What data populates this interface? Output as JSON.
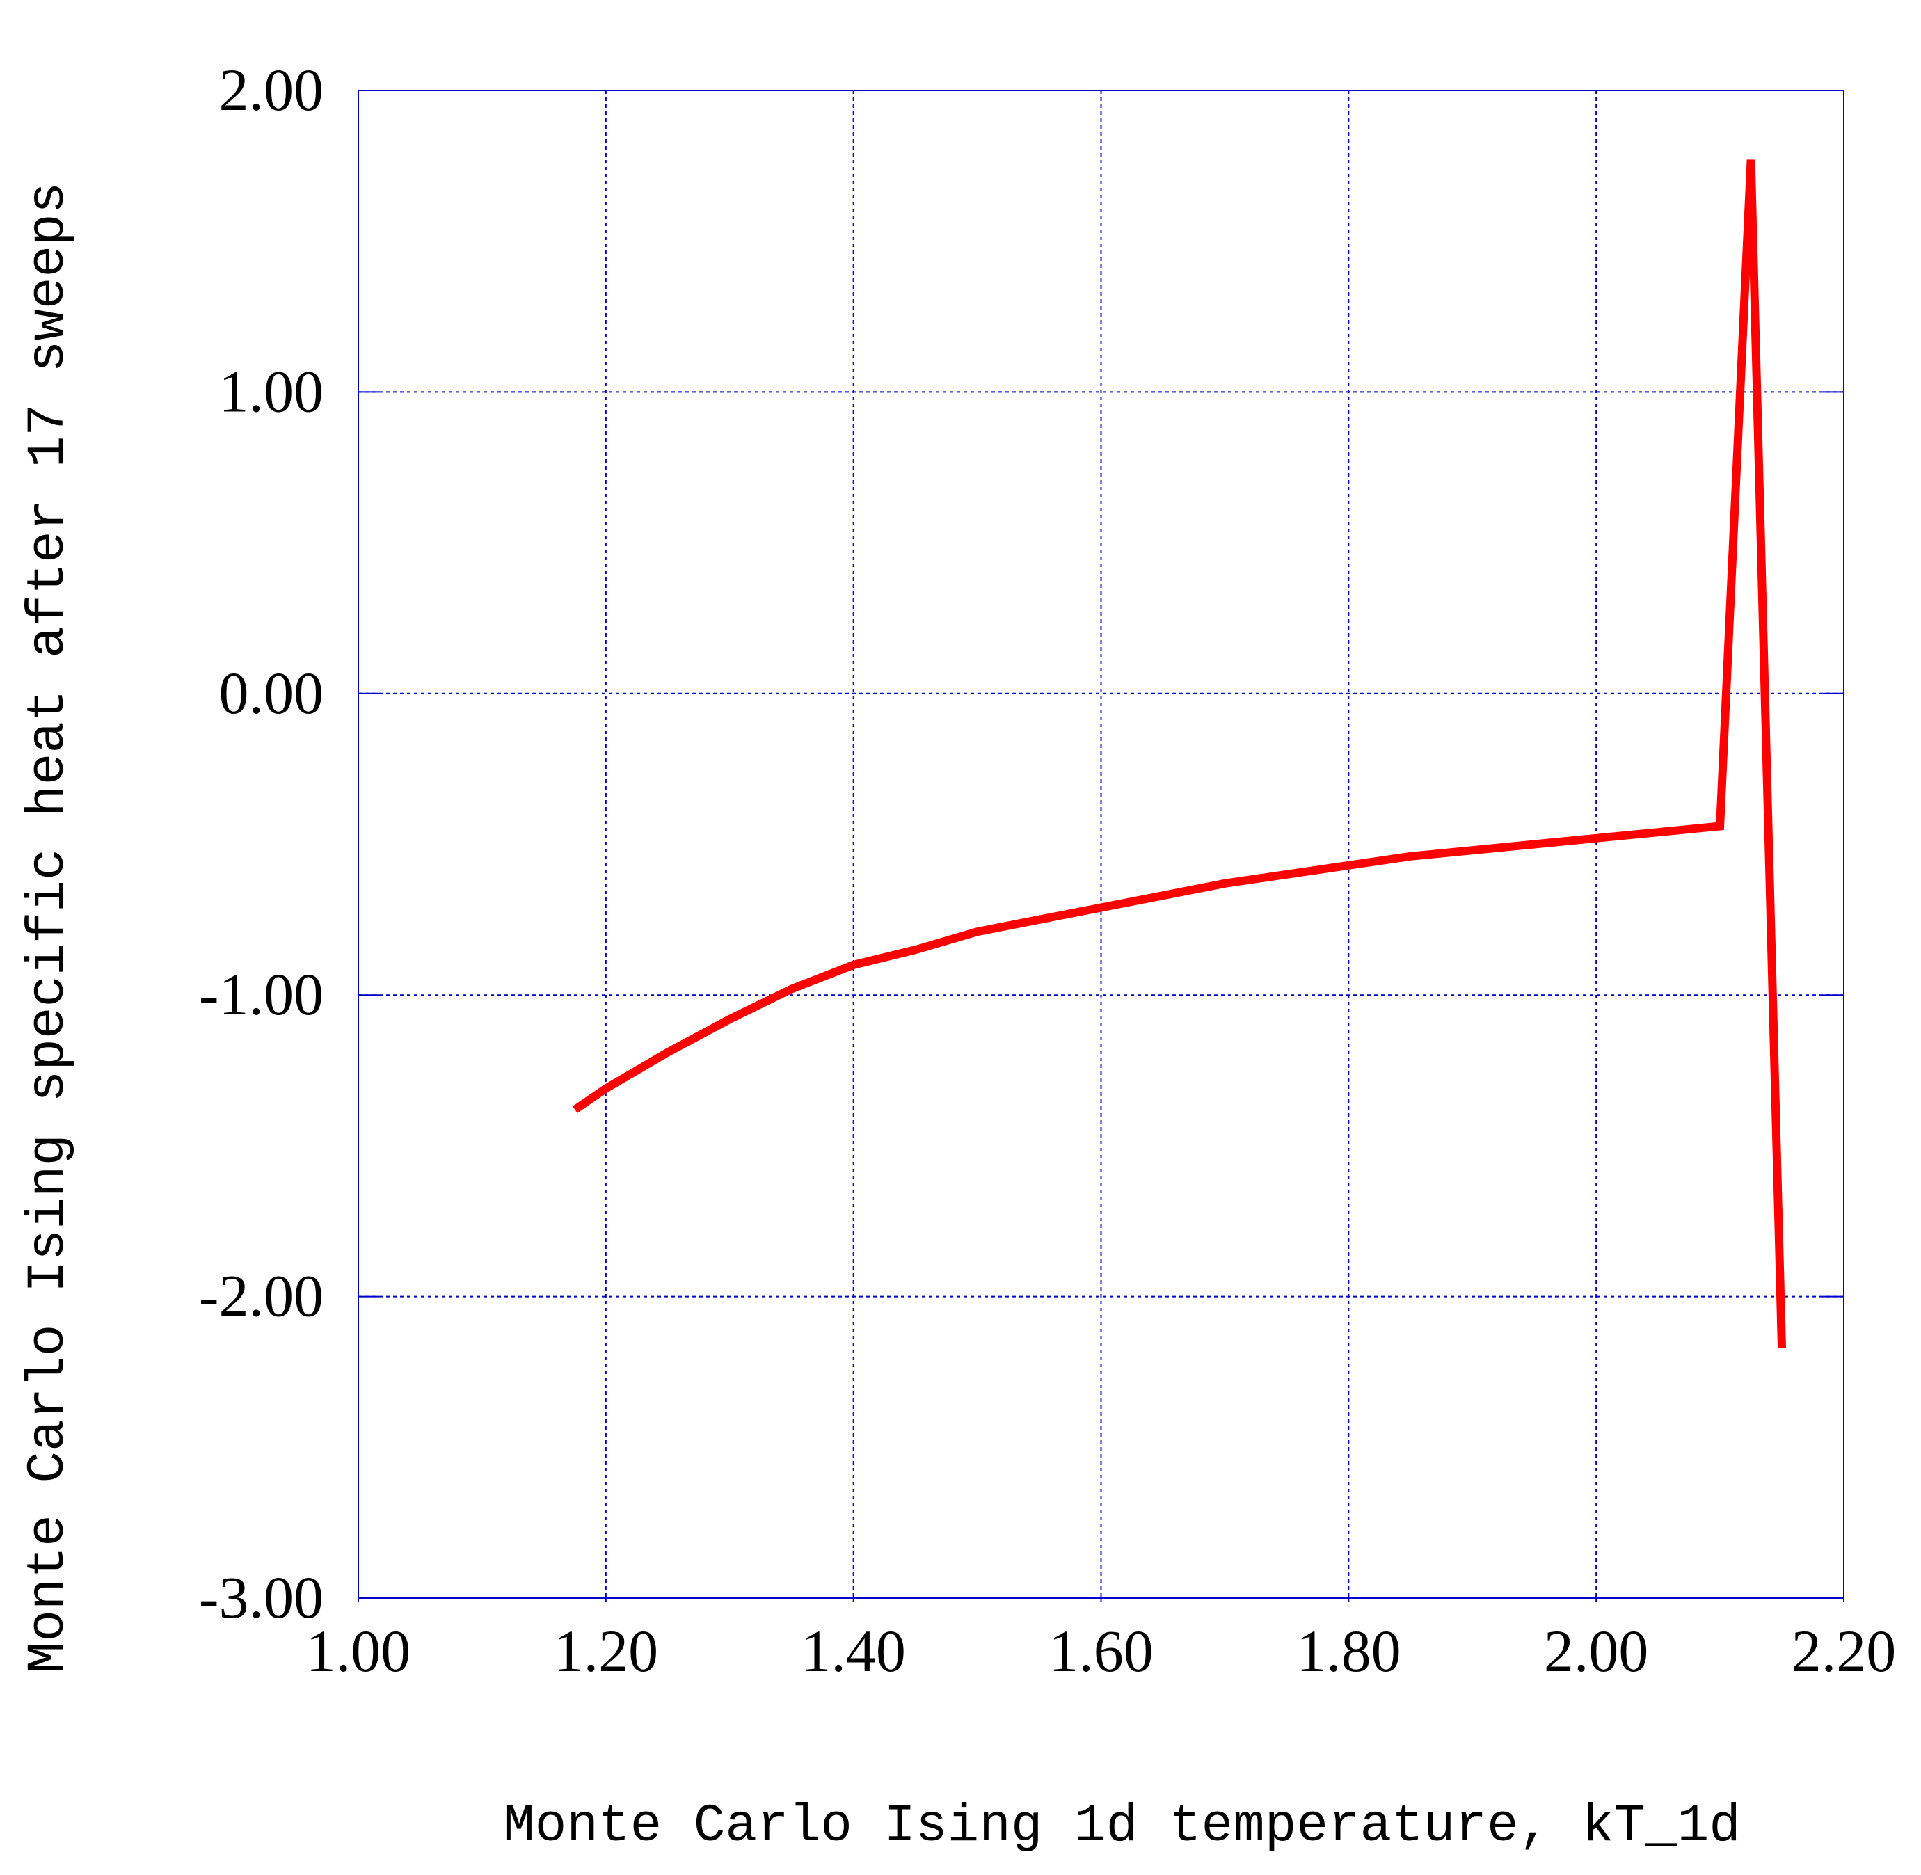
{
  "chart_data": {
    "type": "line",
    "title": "",
    "xlabel": "Monte Carlo Ising 1d temperature, kT_1d",
    "ylabel": "Monte Carlo Ising specific heat after 17 sweeps",
    "xlim": [
      1.0,
      2.2
    ],
    "ylim": [
      -3.0,
      2.0
    ],
    "xticks": [
      "1.00",
      "1.20",
      "1.40",
      "1.60",
      "1.80",
      "2.00",
      "2.20"
    ],
    "yticks": [
      "-3.00",
      "-2.00",
      "-1.00",
      "0.00",
      "1.00",
      "2.00"
    ],
    "grid": true,
    "colors": {
      "line": "#ff0000",
      "grid": "#0000cc",
      "frame": "#0000cc"
    },
    "series": [
      {
        "x": [
          1.175,
          1.2,
          1.25,
          1.3,
          1.35,
          1.4,
          1.45,
          1.5,
          1.55,
          1.6,
          1.65,
          1.7,
          1.75,
          1.8,
          1.85,
          1.9,
          1.95,
          2.0,
          2.05,
          2.1,
          2.125,
          2.15
        ],
        "values": [
          -1.38,
          -1.31,
          -1.19,
          -1.08,
          -0.98,
          -0.9,
          -0.85,
          -0.79,
          -0.75,
          -0.71,
          -0.67,
          -0.63,
          -0.6,
          -0.57,
          -0.54,
          -0.52,
          -0.5,
          -0.48,
          -0.46,
          -0.44,
          1.77,
          -2.17
        ]
      }
    ]
  }
}
